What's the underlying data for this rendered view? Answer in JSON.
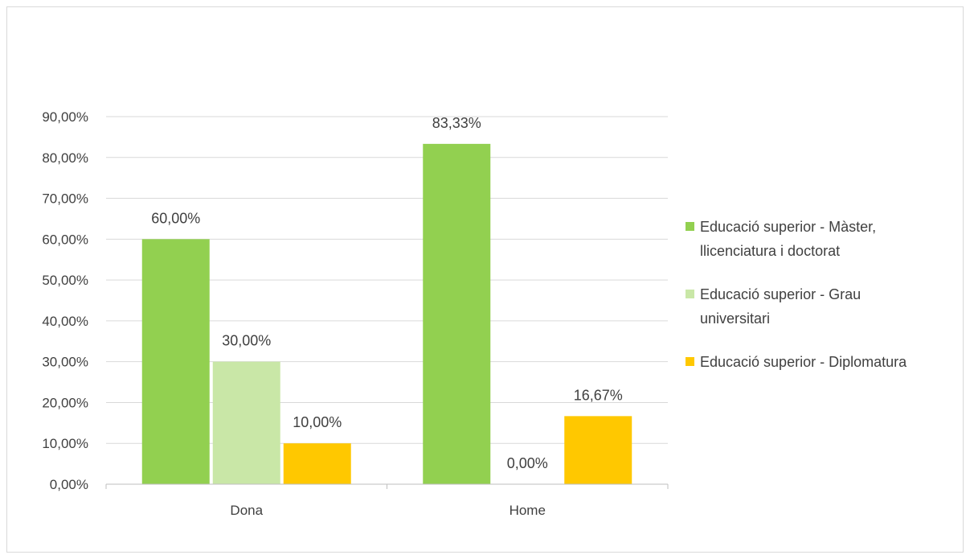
{
  "chart_data": {
    "type": "bar",
    "title": "",
    "xlabel": "",
    "ylabel": "",
    "categories": [
      "Dona",
      "Home"
    ],
    "series": [
      {
        "name": "Educació superior - Màster, llicenciatura i doctorat",
        "values": [
          60.0,
          83.33
        ],
        "labels": [
          "60,00%",
          "83,33%"
        ],
        "color": "#92d050",
        "legend_lines": [
          "Educació superior - Màster,",
          "llicenciatura i doctorat"
        ]
      },
      {
        "name": "Educació superior - Grau universitari",
        "values": [
          30.0,
          0.0
        ],
        "labels": [
          "30,00%",
          "0,00%"
        ],
        "color": "#c9e7a7",
        "legend_lines": [
          "Educació superior - Grau",
          "universitari"
        ]
      },
      {
        "name": "Educació superior - Diplomatura",
        "values": [
          10.0,
          16.67
        ],
        "labels": [
          "10,00%",
          "16,67%"
        ],
        "color": "#ffc800",
        "legend_lines": [
          "Educació superior - Diplomatura"
        ]
      }
    ],
    "ylim": [
      0,
      90
    ],
    "yticks": [
      0,
      10,
      20,
      30,
      40,
      50,
      60,
      70,
      80,
      90
    ],
    "ytick_labels": [
      "0,00%",
      "10,00%",
      "20,00%",
      "30,00%",
      "40,00%",
      "50,00%",
      "60,00%",
      "70,00%",
      "80,00%",
      "90,00%"
    ],
    "grid": true,
    "legend_position": "right"
  }
}
